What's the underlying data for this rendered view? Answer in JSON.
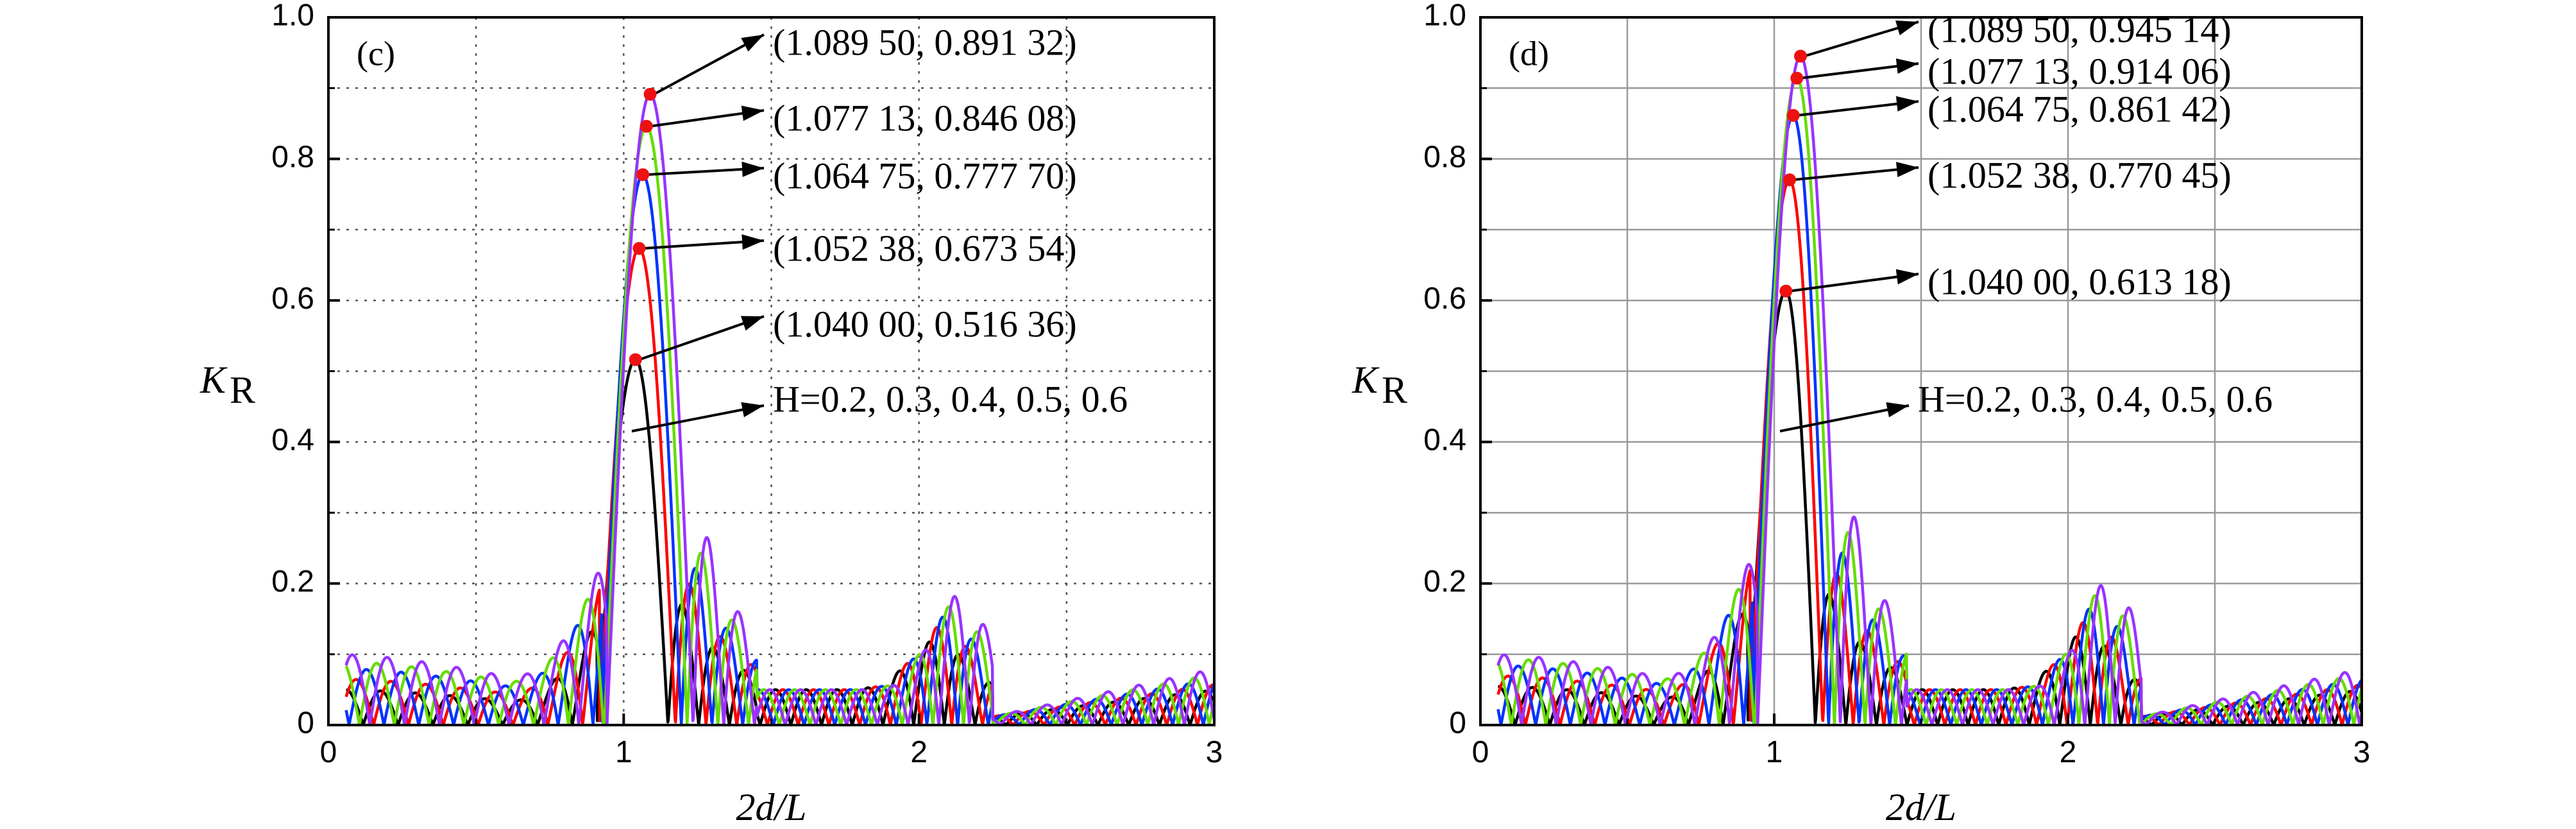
{
  "chart_data": [
    {
      "type": "line",
      "panel_label": "(c)",
      "xlabel": "2d/L",
      "ylabel": "K",
      "ylabel_sub": "R",
      "xlim": [
        0,
        3
      ],
      "ylim": [
        0,
        1.0
      ],
      "x_ticks": [
        "0",
        "1",
        "2",
        "3"
      ],
      "y_ticks": [
        "0",
        "0.2",
        "0.4",
        "0.6",
        "0.8",
        "1.0"
      ],
      "grid": "dotted",
      "series": [
        {
          "color": "#000000",
          "peak_x": 1.04,
          "peak_y": 0.51636,
          "cutoff": 1.15,
          "side_amp": 0.05,
          "sec_peak": 0.09
        },
        {
          "color": "#ff0000",
          "peak_x": 1.05238,
          "peak_y": 0.67354,
          "cutoff": 1.175,
          "side_amp": 0.065,
          "sec_peak": 0.11
        },
        {
          "color": "#0033ff",
          "peak_x": 1.06475,
          "peak_y": 0.7777,
          "cutoff": 1.195,
          "side_amp": 0.08,
          "sec_peak": 0.125
        },
        {
          "color": "#66dd00",
          "peak_x": 1.07713,
          "peak_y": 0.84608,
          "cutoff": 1.215,
          "side_amp": 0.09,
          "sec_peak": 0.14
        },
        {
          "color": "#9933ff",
          "peak_x": 1.0895,
          "peak_y": 0.89132,
          "cutoff": 1.235,
          "side_amp": 0.1,
          "sec_peak": 0.155
        }
      ],
      "annotations": [
        {
          "text": "(1.089 50, 0.891 32)",
          "x": 1.0895,
          "y": 0.89132
        },
        {
          "text": "(1.077 13, 0.846 08)",
          "x": 1.07713,
          "y": 0.84608
        },
        {
          "text": "(1.064 75, 0.777 70)",
          "x": 1.06475,
          "y": 0.7777
        },
        {
          "text": "(1.052 38, 0.673 54)",
          "x": 1.05238,
          "y": 0.67354
        },
        {
          "text": "(1.040 00, 0.516 36)",
          "x": 1.04,
          "y": 0.51636
        }
      ],
      "h_label": "H=0.2, 0.3, 0.4, 0.5, 0.6"
    },
    {
      "type": "line",
      "panel_label": "(d)",
      "xlabel": "2d/L",
      "ylabel": "K",
      "ylabel_sub": "R",
      "xlim": [
        0,
        3
      ],
      "ylim": [
        0,
        1.0
      ],
      "x_ticks": [
        "0",
        "1",
        "2",
        "3"
      ],
      "y_ticks": [
        "0",
        "0.2",
        "0.4",
        "0.6",
        "0.8",
        "1.0"
      ],
      "grid": "solid",
      "series": [
        {
          "color": "#000000",
          "peak_x": 1.04,
          "peak_y": 0.61318,
          "cutoff": 1.14,
          "side_amp": 0.055,
          "sec_peak": 0.1
        },
        {
          "color": "#ff0000",
          "peak_x": 1.05238,
          "peak_y": 0.77045,
          "cutoff": 1.165,
          "side_amp": 0.07,
          "sec_peak": 0.12
        },
        {
          "color": "#0033ff",
          "peak_x": 1.06475,
          "peak_y": 0.86142,
          "cutoff": 1.185,
          "side_amp": 0.085,
          "sec_peak": 0.14
        },
        {
          "color": "#66dd00",
          "peak_x": 1.07713,
          "peak_y": 0.91406,
          "cutoff": 1.205,
          "side_amp": 0.095,
          "sec_peak": 0.16
        },
        {
          "color": "#9933ff",
          "peak_x": 1.0895,
          "peak_y": 0.94514,
          "cutoff": 1.225,
          "side_amp": 0.1,
          "sec_peak": 0.175
        }
      ],
      "annotations": [
        {
          "text": "(1.089 50, 0.945 14)",
          "x": 1.0895,
          "y": 0.94514
        },
        {
          "text": "(1.077 13, 0.914 06)",
          "x": 1.07713,
          "y": 0.91406
        },
        {
          "text": "(1.064 75, 0.861 42)",
          "x": 1.06475,
          "y": 0.86142
        },
        {
          "text": "(1.052 38, 0.770 45)",
          "x": 1.05238,
          "y": 0.77045
        },
        {
          "text": "(1.040 00, 0.613 18)",
          "x": 1.04,
          "y": 0.61318
        }
      ],
      "h_label": "H=0.2, 0.3, 0.4, 0.5, 0.6"
    }
  ]
}
